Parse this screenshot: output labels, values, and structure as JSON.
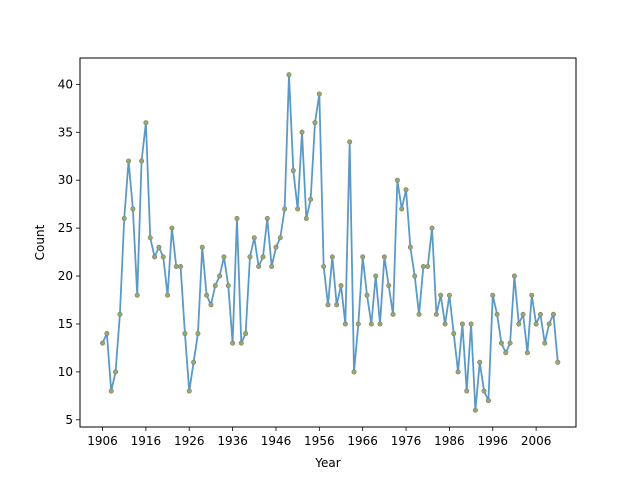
{
  "chart_data": {
    "type": "line",
    "title": "",
    "xlabel": "Year",
    "ylabel": "Count",
    "xlim": [
      1900.8,
      2015.2
    ],
    "ylim": [
      4.25,
      42.75
    ],
    "xticks": [
      1906,
      1916,
      1926,
      1936,
      1946,
      1956,
      1966,
      1976,
      1986,
      1996,
      2006
    ],
    "yticks": [
      5,
      10,
      15,
      20,
      25,
      30,
      35,
      40
    ],
    "grid": false,
    "legend": "none",
    "colors": {
      "line": "#5b9ac7",
      "marker_fill": "#9aa86a",
      "marker_edge": "#7a7a7a"
    },
    "x": [
      1906,
      1907,
      1908,
      1909,
      1910,
      1911,
      1912,
      1913,
      1914,
      1915,
      1916,
      1917,
      1918,
      1919,
      1920,
      1921,
      1922,
      1923,
      1924,
      1925,
      1926,
      1927,
      1928,
      1929,
      1930,
      1931,
      1932,
      1933,
      1934,
      1935,
      1936,
      1937,
      1938,
      1939,
      1940,
      1941,
      1942,
      1943,
      1944,
      1945,
      1946,
      1947,
      1948,
      1949,
      1950,
      1951,
      1952,
      1953,
      1954,
      1955,
      1956,
      1957,
      1958,
      1959,
      1960,
      1961,
      1962,
      1963,
      1964,
      1965,
      1966,
      1967,
      1968,
      1969,
      1970,
      1971,
      1972,
      1973,
      1974,
      1975,
      1976,
      1977,
      1978,
      1979,
      1980,
      1981,
      1982,
      1983,
      1984,
      1985,
      1986,
      1987,
      1988,
      1989,
      1990,
      1991,
      1992,
      1993,
      1994,
      1995,
      1996,
      1997,
      1998,
      1999,
      2000,
      2001,
      2002,
      2003,
      2004,
      2005,
      2006,
      2007,
      2008,
      2009,
      2010,
      2011
    ],
    "series": [
      {
        "values": [
          13,
          14,
          8,
          10,
          16,
          26,
          32,
          27,
          18,
          32,
          36,
          24,
          22,
          23,
          22,
          18,
          25,
          21,
          21,
          14,
          8,
          11,
          14,
          23,
          18,
          17,
          19,
          20,
          22,
          19,
          13,
          26,
          13,
          14,
          22,
          24,
          21,
          22,
          26,
          21,
          23,
          24,
          27,
          41,
          31,
          27,
          35,
          26,
          28,
          36,
          39,
          21,
          17,
          22,
          17,
          19,
          15,
          34,
          10,
          15,
          22,
          18,
          15,
          20,
          15,
          22,
          19,
          16,
          30,
          27,
          29,
          23,
          20,
          16,
          21,
          21,
          25,
          16,
          18,
          15,
          18,
          14,
          10,
          15,
          8,
          15,
          6,
          11,
          8,
          7,
          18,
          16,
          13,
          12,
          13,
          20,
          15,
          16,
          12,
          18,
          15,
          16,
          13,
          15,
          16,
          11
        ]
      }
    ]
  }
}
